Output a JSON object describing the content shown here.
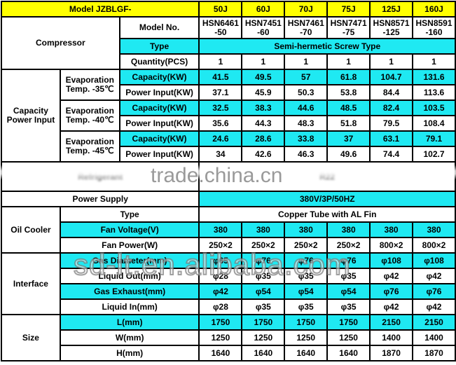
{
  "header": {
    "label": "Model JZBLGF-",
    "models": [
      "50J",
      "60J",
      "70J",
      "75J",
      "125J",
      "160J"
    ]
  },
  "compressor": {
    "group": "Compressor",
    "model_no": {
      "label": "Model No.",
      "values": [
        [
          "HSN6461",
          "-50"
        ],
        [
          "HSN7451",
          "-60"
        ],
        [
          "HSN7461",
          "-70"
        ],
        [
          "HSN7471",
          "-75"
        ],
        [
          "HSN8571",
          "-125"
        ],
        [
          "HSN8591",
          "-160"
        ]
      ]
    },
    "type": {
      "label": "Type",
      "value": "Semi-hermetic Screw Type"
    },
    "quantity": {
      "label": "Quantity(PCS)",
      "values": [
        "1",
        "1",
        "1",
        "1",
        "1",
        "1"
      ]
    }
  },
  "capacity": {
    "group": [
      "Capacity",
      "Power Input"
    ],
    "conditions": [
      {
        "label": [
          "Evaporation",
          "Temp. -35℃"
        ],
        "capacity": {
          "label": "Capacity(KW)",
          "values": [
            "41.5",
            "49.5",
            "57",
            "61.8",
            "104.7",
            "131.6"
          ]
        },
        "power": {
          "label": "Power Input(KW)",
          "values": [
            "37.1",
            "45.9",
            "50.3",
            "53.8",
            "84.4",
            "113.6"
          ]
        }
      },
      {
        "label": [
          "Evaporation",
          "Temp. -40℃"
        ],
        "capacity": {
          "label": "Capacity(KW)",
          "values": [
            "32.5",
            "38.3",
            "44.6",
            "48.5",
            "82.4",
            "103.5"
          ]
        },
        "power": {
          "label": "Power Input(KW)",
          "values": [
            "35.6",
            "44.3",
            "48.3",
            "51.8",
            "79.5",
            "108.4"
          ]
        }
      },
      {
        "label": [
          "Evaporation",
          "Temp. -45℃"
        ],
        "capacity": {
          "label": "Capacity(KW)",
          "values": [
            "24.6",
            "28.6",
            "33.8",
            "37",
            "63.1",
            "79.1"
          ]
        },
        "power": {
          "label": "Power Input(KW)",
          "values": [
            "34",
            "42.6",
            "46.3",
            "49.6",
            "74.4",
            "102.7"
          ]
        }
      }
    ]
  },
  "refrigerant": {
    "label": "Refrigerant",
    "value": "R22"
  },
  "power_supply": {
    "label": "Power Supply",
    "value": "380V/3P/50HZ"
  },
  "oil_cooler": {
    "group": "Oil Cooler",
    "type": {
      "label": "Type",
      "value": "Copper Tube with AL Fin"
    },
    "fan_voltage": {
      "label": "Fan Voltage(V)",
      "values": [
        "380",
        "380",
        "380",
        "380",
        "380",
        "380"
      ]
    },
    "fan_power": {
      "label": "Fan Power(W)",
      "values": [
        "250×2",
        "250×2",
        "250×2",
        "250×2",
        "800×2",
        "800×2"
      ]
    }
  },
  "interface": {
    "group": "Interface",
    "rows": [
      {
        "label": "Gas Diameter(mm)",
        "values": [
          "φ65",
          "φ76",
          "φ76",
          "φ76",
          "φ108",
          "φ108"
        ]
      },
      {
        "label": "Liquid Out(mm)",
        "values": [
          "φ28",
          "φ35",
          "φ35",
          "φ35",
          "φ42",
          "φ42"
        ]
      },
      {
        "label": "Gas Exhaust(mm)",
        "values": [
          "φ42",
          "φ54",
          "φ54",
          "φ54",
          "φ76",
          "φ76"
        ]
      },
      {
        "label": "Liquid In(mm)",
        "values": [
          "φ28",
          "φ35",
          "φ35",
          "φ35",
          "φ42",
          "φ42"
        ]
      }
    ]
  },
  "size": {
    "group": "Size",
    "rows": [
      {
        "label": "L(mm)",
        "values": [
          "1750",
          "1750",
          "1750",
          "1750",
          "2150",
          "2150"
        ]
      },
      {
        "label": "W(mm)",
        "values": [
          "1250",
          "1250",
          "1250",
          "1250",
          "1400",
          "1400"
        ]
      },
      {
        "label": "H(mm)",
        "values": [
          "1640",
          "1640",
          "1640",
          "1640",
          "1870",
          "1870"
        ]
      }
    ]
  },
  "watermarks": [
    "trade.china.cn",
    "sd-lt.en.alibaba.com"
  ],
  "colors": {
    "header": "#ffff00",
    "highlight": "#1fe9f2"
  }
}
